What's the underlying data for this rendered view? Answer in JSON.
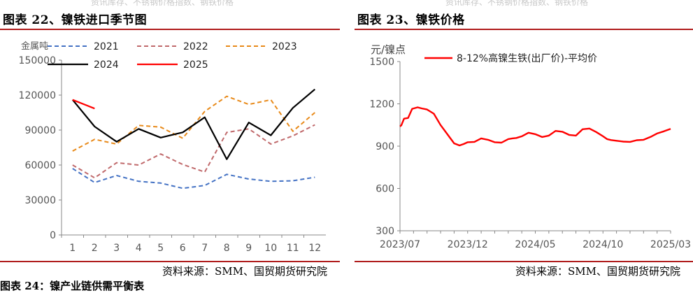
{
  "top_fragment_left": "资讯库存、不锈钢价格指数、钢铁价格",
  "top_fragment_right": "资讯库存、不锈钢价格指数、钢铁价格",
  "bottom_fragment": "图表 24：镍产业链供需平衡表",
  "left": {
    "title": "图表 22、镍铁进口季节图",
    "source": "资料来源：SMM、国贸期货研究院"
  },
  "right": {
    "title": "图表 23、镍铁价格",
    "source": "资料来源：SMM、国贸期货研究院"
  },
  "colors": {
    "accent": "#b01c1c"
  },
  "chart_data": [
    {
      "type": "line",
      "ylabel": "金属吨",
      "ylim": [
        0,
        150000
      ],
      "yticks": [
        0,
        30000,
        60000,
        90000,
        120000,
        150000
      ],
      "categories": [
        "1",
        "2",
        "3",
        "4",
        "5",
        "6",
        "7",
        "8",
        "9",
        "10",
        "11",
        "12"
      ],
      "legend_position": "top",
      "series": [
        {
          "name": "2021",
          "color": "#4472c4",
          "dash": "dashed",
          "values": [
            57000,
            45000,
            51000,
            46000,
            44500,
            40000,
            42500,
            52000,
            48000,
            46000,
            46500,
            49500
          ]
        },
        {
          "name": "2022",
          "color": "#c0696b",
          "dash": "dashed",
          "values": [
            60000,
            49000,
            62000,
            60000,
            69500,
            60500,
            54000,
            88000,
            91000,
            78000,
            85000,
            94500
          ]
        },
        {
          "name": "2023",
          "color": "#e88a1a",
          "dash": "dashed",
          "values": [
            72000,
            82000,
            78000,
            94000,
            92500,
            83000,
            106000,
            119000,
            112000,
            116000,
            89000,
            105000
          ]
        },
        {
          "name": "2024",
          "color": "#000000",
          "dash": "solid",
          "values": [
            116000,
            93000,
            80000,
            91000,
            83500,
            88000,
            101000,
            65000,
            96500,
            85500,
            109000,
            125000
          ]
        },
        {
          "name": "2025",
          "color": "#ff0000",
          "dash": "solid",
          "values": [
            116000,
            108500,
            null,
            null,
            null,
            null,
            null,
            null,
            null,
            null,
            null,
            null
          ]
        }
      ]
    },
    {
      "type": "line",
      "ylabel": "元/镍点",
      "ylim": [
        300,
        1500
      ],
      "yticks": [
        300,
        600,
        900,
        1200,
        1500
      ],
      "x_range": [
        "2023/07",
        "2025/03"
      ],
      "xticks": [
        "2023/07",
        "2023/12",
        "2024/05",
        "2024/10",
        "2025/03"
      ],
      "legend_position": "top",
      "series": [
        {
          "name": "8-12%高镍生铁(出厂价)-平均价",
          "color": "#ff0000",
          "dash": "solid",
          "x": [
            0,
            0.1,
            0.3,
            0.6,
            0.9,
            1.3,
            1.6,
            2.0,
            2.5,
            3.0,
            3.5,
            4.0,
            4.4,
            4.7,
            5.0,
            5.5,
            6.0,
            6.5,
            7.0,
            7.5,
            8.0,
            8.3,
            8.6,
            9.0,
            9.5,
            10.0,
            10.5,
            11.0,
            11.5,
            12.0,
            12.5,
            13.0,
            13.5,
            14.0,
            14.5,
            15.0,
            15.3,
            15.6,
            16.0,
            16.5,
            17.0,
            17.5,
            18.0,
            18.5,
            19.0,
            19.5,
            20.0
          ],
          "values": [
            1040,
            1048,
            1095,
            1100,
            1165,
            1175,
            1168,
            1160,
            1130,
            1050,
            985,
            920,
            905,
            915,
            928,
            930,
            955,
            945,
            928,
            925,
            950,
            955,
            958,
            970,
            995,
            985,
            965,
            975,
            1008,
            1002,
            980,
            975,
            1020,
            1025,
            1000,
            970,
            950,
            943,
            938,
            932,
            930,
            942,
            945,
            965,
            990,
            1005,
            1023
          ]
        }
      ]
    }
  ]
}
